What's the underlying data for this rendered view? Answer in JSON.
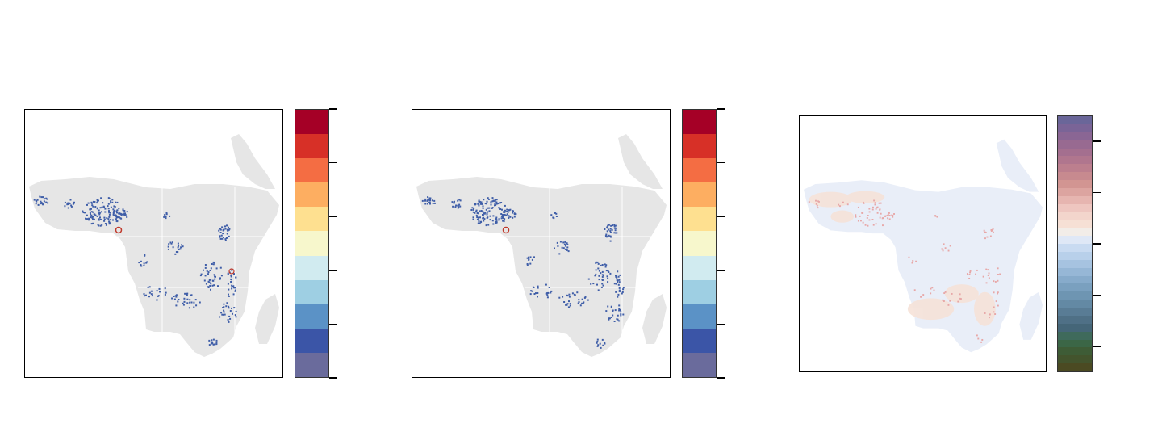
{
  "panels": [
    {
      "name": "map-panel-1",
      "land_color": "#e6e6e6",
      "highlight_color": "#3f5ea8",
      "colorbar": {
        "colors": [
          "#a50026",
          "#d73027",
          "#f46d43",
          "#fdae61",
          "#fee090",
          "#f7f7cc",
          "#d1ebf0",
          "#9ecfe3",
          "#5b92c6",
          "#3b55a7",
          "#6a6b9c"
        ],
        "ticks": 6
      }
    },
    {
      "name": "map-panel-2",
      "land_color": "#e6e6e6",
      "highlight_color": "#3f5ea8",
      "colorbar": {
        "colors": [
          "#a50026",
          "#d73027",
          "#f46d43",
          "#fdae61",
          "#fee090",
          "#f7f7cc",
          "#d1ebf0",
          "#9ecfe3",
          "#5b92c6",
          "#3b55a7",
          "#6a6b9c"
        ],
        "ticks": 6
      }
    },
    {
      "name": "map-panel-3",
      "land_color": "#e9eef8",
      "highlight_color": "#e7a7a7",
      "colorbar": {
        "colors": [
          "#6a6699",
          "#7a6497",
          "#8a6694",
          "#986a91",
          "#a46f8f",
          "#b0768e",
          "#bc7f8e",
          "#c78a8f",
          "#d29592",
          "#dca4a0",
          "#e6b5b0",
          "#eec6c0",
          "#f3d5cc",
          "#f6e0d5",
          "#f2ede8",
          "#dfe8f6",
          "#c9dbf1",
          "#b8d0ea",
          "#a6c3e0",
          "#96b7d6",
          "#87abcb",
          "#7aa0bf",
          "#6e95b2",
          "#6389a4",
          "#597c95",
          "#4f7086",
          "#456678",
          "#3f6a5b",
          "#3b6646",
          "#3e5c36",
          "#43542d",
          "#4b4a22"
        ],
        "ticks": 5
      }
    }
  ]
}
